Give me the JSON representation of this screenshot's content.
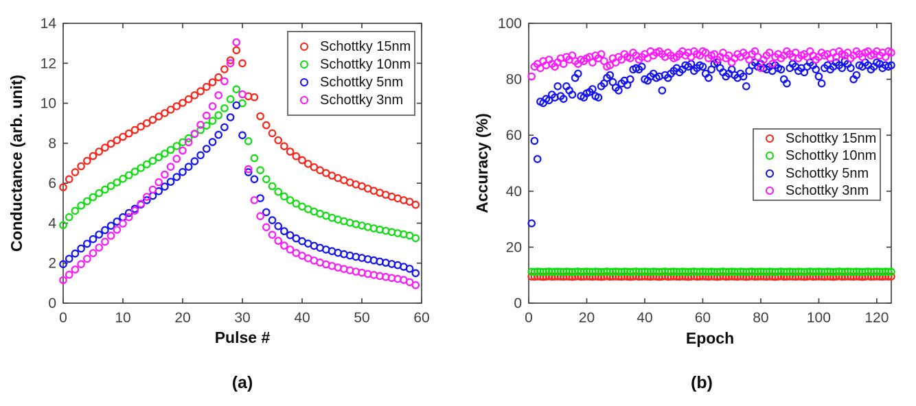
{
  "chart_data": [
    {
      "type": "scatter",
      "panel_label": "(a)",
      "xlabel": "Pulse #",
      "ylabel": "Conductance (arb. unit)",
      "xlim": [
        0,
        60
      ],
      "ylim": [
        0,
        14
      ],
      "xticks": [
        0,
        10,
        20,
        30,
        40,
        50,
        60
      ],
      "yticks": [
        0,
        2,
        4,
        6,
        8,
        10,
        12,
        14
      ],
      "x_start": 0,
      "x_step": 1,
      "grid": false,
      "legend_position": "top-right",
      "series": [
        {
          "name": "Schottky 15nm",
          "color": "#f8251a",
          "values": [
            5.8,
            6.2,
            6.55,
            6.85,
            7.12,
            7.36,
            7.58,
            7.78,
            7.97,
            8.15,
            8.32,
            8.49,
            8.66,
            8.83,
            9.0,
            9.17,
            9.34,
            9.51,
            9.68,
            9.85,
            10.02,
            10.2,
            10.4,
            10.6,
            10.82,
            11.05,
            11.3,
            11.7,
            12.15,
            12.65,
            12.0,
            10.35,
            10.3,
            9.35,
            8.9,
            8.5,
            8.15,
            7.85,
            7.58,
            7.35,
            7.15,
            6.97,
            6.8,
            6.65,
            6.51,
            6.38,
            6.26,
            6.15,
            6.04,
            5.94,
            5.85,
            5.73,
            5.62,
            5.52,
            5.42,
            5.33,
            5.24,
            5.15,
            5.07,
            4.92
          ]
        },
        {
          "name": "Schottky 10nm",
          "color": "#10dc10",
          "values": [
            3.9,
            4.3,
            4.62,
            4.88,
            5.1,
            5.3,
            5.5,
            5.68,
            5.86,
            6.04,
            6.22,
            6.4,
            6.58,
            6.76,
            6.94,
            7.12,
            7.3,
            7.48,
            7.67,
            7.86,
            8.05,
            8.25,
            8.45,
            8.66,
            8.88,
            9.12,
            9.4,
            9.75,
            10.2,
            10.7,
            10.0,
            8.1,
            7.25,
            6.65,
            6.2,
            5.85,
            5.57,
            5.34,
            5.15,
            4.98,
            4.83,
            4.7,
            4.58,
            4.47,
            4.37,
            4.27,
            4.18,
            4.1,
            4.02,
            3.95,
            3.88,
            3.81,
            3.74,
            3.68,
            3.62,
            3.56,
            3.5,
            3.44,
            3.38,
            3.25
          ]
        },
        {
          "name": "Schottky 5nm",
          "color": "#1414f0",
          "values": [
            1.95,
            2.22,
            2.48,
            2.73,
            2.97,
            3.2,
            3.43,
            3.65,
            3.87,
            4.08,
            4.3,
            4.51,
            4.72,
            4.93,
            5.15,
            5.37,
            5.6,
            5.83,
            6.07,
            6.31,
            6.56,
            6.82,
            7.1,
            7.4,
            7.72,
            8.06,
            8.42,
            8.8,
            9.3,
            9.9,
            8.4,
            6.55,
            6.2,
            5.25,
            4.55,
            4.15,
            3.85,
            3.6,
            3.4,
            3.24,
            3.1,
            2.98,
            2.87,
            2.77,
            2.68,
            2.6,
            2.52,
            2.45,
            2.38,
            2.32,
            2.26,
            2.2,
            2.14,
            2.08,
            2.02,
            1.96,
            1.9,
            1.82,
            1.72,
            1.5
          ]
        },
        {
          "name": "Schottky 3nm",
          "color": "#fa1afa",
          "values": [
            1.15,
            1.42,
            1.68,
            1.95,
            2.22,
            2.5,
            2.78,
            3.07,
            3.37,
            3.67,
            3.98,
            4.3,
            4.63,
            4.97,
            5.32,
            5.68,
            6.05,
            6.43,
            6.82,
            7.22,
            7.63,
            8.05,
            8.48,
            8.92,
            9.38,
            9.85,
            10.4,
            11.1,
            12.0,
            13.05,
            10.45,
            6.7,
            5.15,
            4.35,
            3.8,
            3.42,
            3.12,
            2.88,
            2.68,
            2.51,
            2.37,
            2.24,
            2.13,
            2.03,
            1.94,
            1.86,
            1.78,
            1.71,
            1.64,
            1.58,
            1.52,
            1.46,
            1.41,
            1.36,
            1.31,
            1.26,
            1.21,
            1.16,
            1.05,
            0.9
          ]
        }
      ]
    },
    {
      "type": "scatter",
      "panel_label": "(b)",
      "xlabel": "Epoch",
      "ylabel": "Accuracy (%)",
      "xlim": [
        0,
        125
      ],
      "ylim": [
        0,
        100
      ],
      "xticks": [
        0,
        20,
        40,
        60,
        80,
        100,
        120
      ],
      "yticks": [
        0,
        20,
        40,
        60,
        80,
        100
      ],
      "x_start": 1,
      "x_step": 1,
      "grid": false,
      "legend_position": "middle-right",
      "series": [
        {
          "name": "Schottky 15nm",
          "color": "#f8251a",
          "values": [
            9.5,
            9.45,
            9.55,
            9.5,
            9.4,
            9.5,
            9.6,
            9.45,
            9.5,
            9.55,
            9.5,
            9.45,
            9.55,
            9.5,
            9.4,
            9.5,
            9.6,
            9.45,
            9.5,
            9.55,
            9.5,
            9.45,
            9.55,
            9.5,
            9.4,
            9.5,
            9.6,
            9.45,
            9.5,
            9.55,
            9.5,
            9.45,
            9.55,
            9.5,
            9.4,
            9.5,
            9.6,
            9.45,
            9.5,
            9.55,
            9.5,
            9.45,
            9.55,
            9.5,
            9.4,
            9.5,
            9.6,
            9.45,
            9.5,
            9.55,
            9.5,
            9.45,
            9.55,
            9.5,
            9.4,
            9.5,
            9.6,
            9.45,
            9.5,
            9.55,
            9.5,
            9.45,
            9.55,
            9.5,
            9.4,
            9.5,
            9.6,
            9.45,
            9.5,
            9.55,
            9.5,
            9.45,
            9.55,
            9.5,
            9.4,
            9.5,
            9.6,
            9.45,
            9.5,
            9.55,
            9.5,
            9.45,
            9.55,
            9.5,
            9.4,
            9.5,
            9.6,
            9.45,
            9.5,
            9.55,
            9.5,
            9.45,
            9.55,
            9.5,
            9.4,
            9.5,
            9.6,
            9.45,
            9.5,
            9.55,
            9.5,
            9.45,
            9.55,
            9.5,
            9.4,
            9.5,
            9.6,
            9.45,
            9.5,
            9.55,
            9.5,
            9.45,
            9.55,
            9.5,
            9.4,
            9.5,
            9.6,
            9.45,
            9.5,
            9.55,
            9.5,
            9.45,
            9.55,
            9.5,
            9.5
          ]
        },
        {
          "name": "Schottky 10nm",
          "color": "#10dc10",
          "values": [
            11.2,
            11.15,
            11.25,
            11.2,
            11.1,
            11.2,
            11.3,
            11.15,
            11.2,
            11.25,
            11.2,
            11.15,
            11.25,
            11.2,
            11.1,
            11.2,
            11.3,
            11.15,
            11.2,
            11.25,
            11.2,
            11.15,
            11.25,
            11.2,
            11.1,
            11.2,
            11.3,
            11.15,
            11.2,
            11.25,
            11.2,
            11.15,
            11.25,
            11.2,
            11.1,
            11.2,
            11.3,
            11.15,
            11.2,
            11.25,
            11.2,
            11.15,
            11.25,
            11.2,
            11.1,
            11.2,
            11.3,
            11.15,
            11.2,
            11.25,
            11.2,
            11.15,
            11.25,
            11.2,
            11.1,
            11.2,
            11.3,
            11.15,
            11.2,
            11.25,
            11.2,
            11.15,
            11.25,
            11.2,
            11.1,
            11.2,
            11.3,
            11.15,
            11.2,
            11.25,
            11.2,
            11.15,
            11.25,
            11.2,
            11.1,
            11.2,
            11.3,
            11.15,
            11.2,
            11.25,
            11.2,
            11.15,
            11.25,
            11.2,
            11.1,
            11.2,
            11.3,
            11.15,
            11.2,
            11.25,
            11.2,
            11.15,
            11.25,
            11.2,
            11.1,
            11.2,
            11.3,
            11.15,
            11.2,
            11.25,
            11.2,
            11.15,
            11.25,
            11.2,
            11.1,
            11.2,
            11.3,
            11.15,
            11.2,
            11.25,
            11.2,
            11.15,
            11.25,
            11.2,
            11.1,
            11.2,
            11.3,
            11.15,
            11.2,
            11.25,
            11.2,
            11.15,
            11.25,
            11.2,
            11.2
          ]
        },
        {
          "name": "Schottky 5nm",
          "color": "#1414f0",
          "values": [
            28.5,
            58,
            51.5,
            72,
            71.5,
            73,
            72.5,
            74.5,
            73.5,
            77.5,
            74,
            73,
            77.5,
            76,
            74.5,
            80.5,
            82,
            74,
            73.5,
            75,
            75.5,
            76.5,
            74,
            73.5,
            77.5,
            78.5,
            80.5,
            81.5,
            79,
            77,
            76,
            78.5,
            79.5,
            78,
            80,
            83.5,
            84,
            83.5,
            84.5,
            80,
            79.5,
            81,
            82,
            80.5,
            81,
            76,
            81.5,
            80.5,
            82,
            83,
            84,
            82.5,
            83.5,
            85,
            84.5,
            85.5,
            83,
            84,
            85,
            84.5,
            82,
            80.5,
            83.5,
            85.5,
            86,
            84,
            82.5,
            81,
            82,
            83.5,
            81.5,
            80.5,
            82,
            81,
            77.5,
            83,
            85,
            86,
            84.5,
            85.5,
            84,
            83.5,
            84.5,
            83,
            85,
            84,
            83.5,
            80,
            78.5,
            84,
            85.5,
            84.5,
            83,
            84,
            82.5,
            84.5,
            86,
            85,
            83.5,
            81,
            78.5,
            84,
            85,
            83.5,
            84.5,
            86,
            85,
            84,
            86.5,
            85.5,
            84,
            80,
            81.5,
            85,
            84.5,
            86,
            85,
            83.5,
            84.5,
            86,
            85.5,
            84,
            85,
            84.5,
            85
          ]
        },
        {
          "name": "Schottky 3nm",
          "color": "#fa1afa",
          "values": [
            81,
            84.5,
            85.5,
            84,
            86.5,
            85,
            87,
            85.5,
            84.5,
            86,
            87.5,
            85.5,
            88,
            87,
            88.5,
            86.5,
            85.5,
            87,
            86.5,
            87.5,
            88,
            86,
            88.5,
            87.5,
            89,
            86.5,
            84.5,
            85,
            87.5,
            86,
            88,
            87,
            89,
            88,
            87.5,
            89.5,
            88.5,
            87,
            88,
            89,
            87.5,
            90,
            88.5,
            89.5,
            90,
            89,
            88,
            89.5,
            88.5,
            87.5,
            88,
            89,
            90,
            88.5,
            89.5,
            88,
            90,
            89,
            88.5,
            90,
            89.5,
            87.5,
            88.5,
            89,
            87,
            88,
            89.5,
            87.5,
            88.5,
            86,
            87.5,
            89,
            88,
            89.5,
            88.5,
            87,
            89,
            90,
            88,
            84,
            87,
            88.5,
            89.5,
            85.5,
            88,
            89,
            87.5,
            88.5,
            90,
            89,
            88,
            89.5,
            87.5,
            88.5,
            89,
            88,
            90,
            88.5,
            87,
            88,
            89.5,
            88.5,
            89,
            87.5,
            89.5,
            88,
            90,
            89,
            88.5,
            89.5,
            87.5,
            88.5,
            90,
            89,
            88,
            89.5,
            90,
            88.5,
            89,
            90,
            88.5,
            89.5,
            88,
            90,
            89.5
          ]
        }
      ]
    }
  ]
}
